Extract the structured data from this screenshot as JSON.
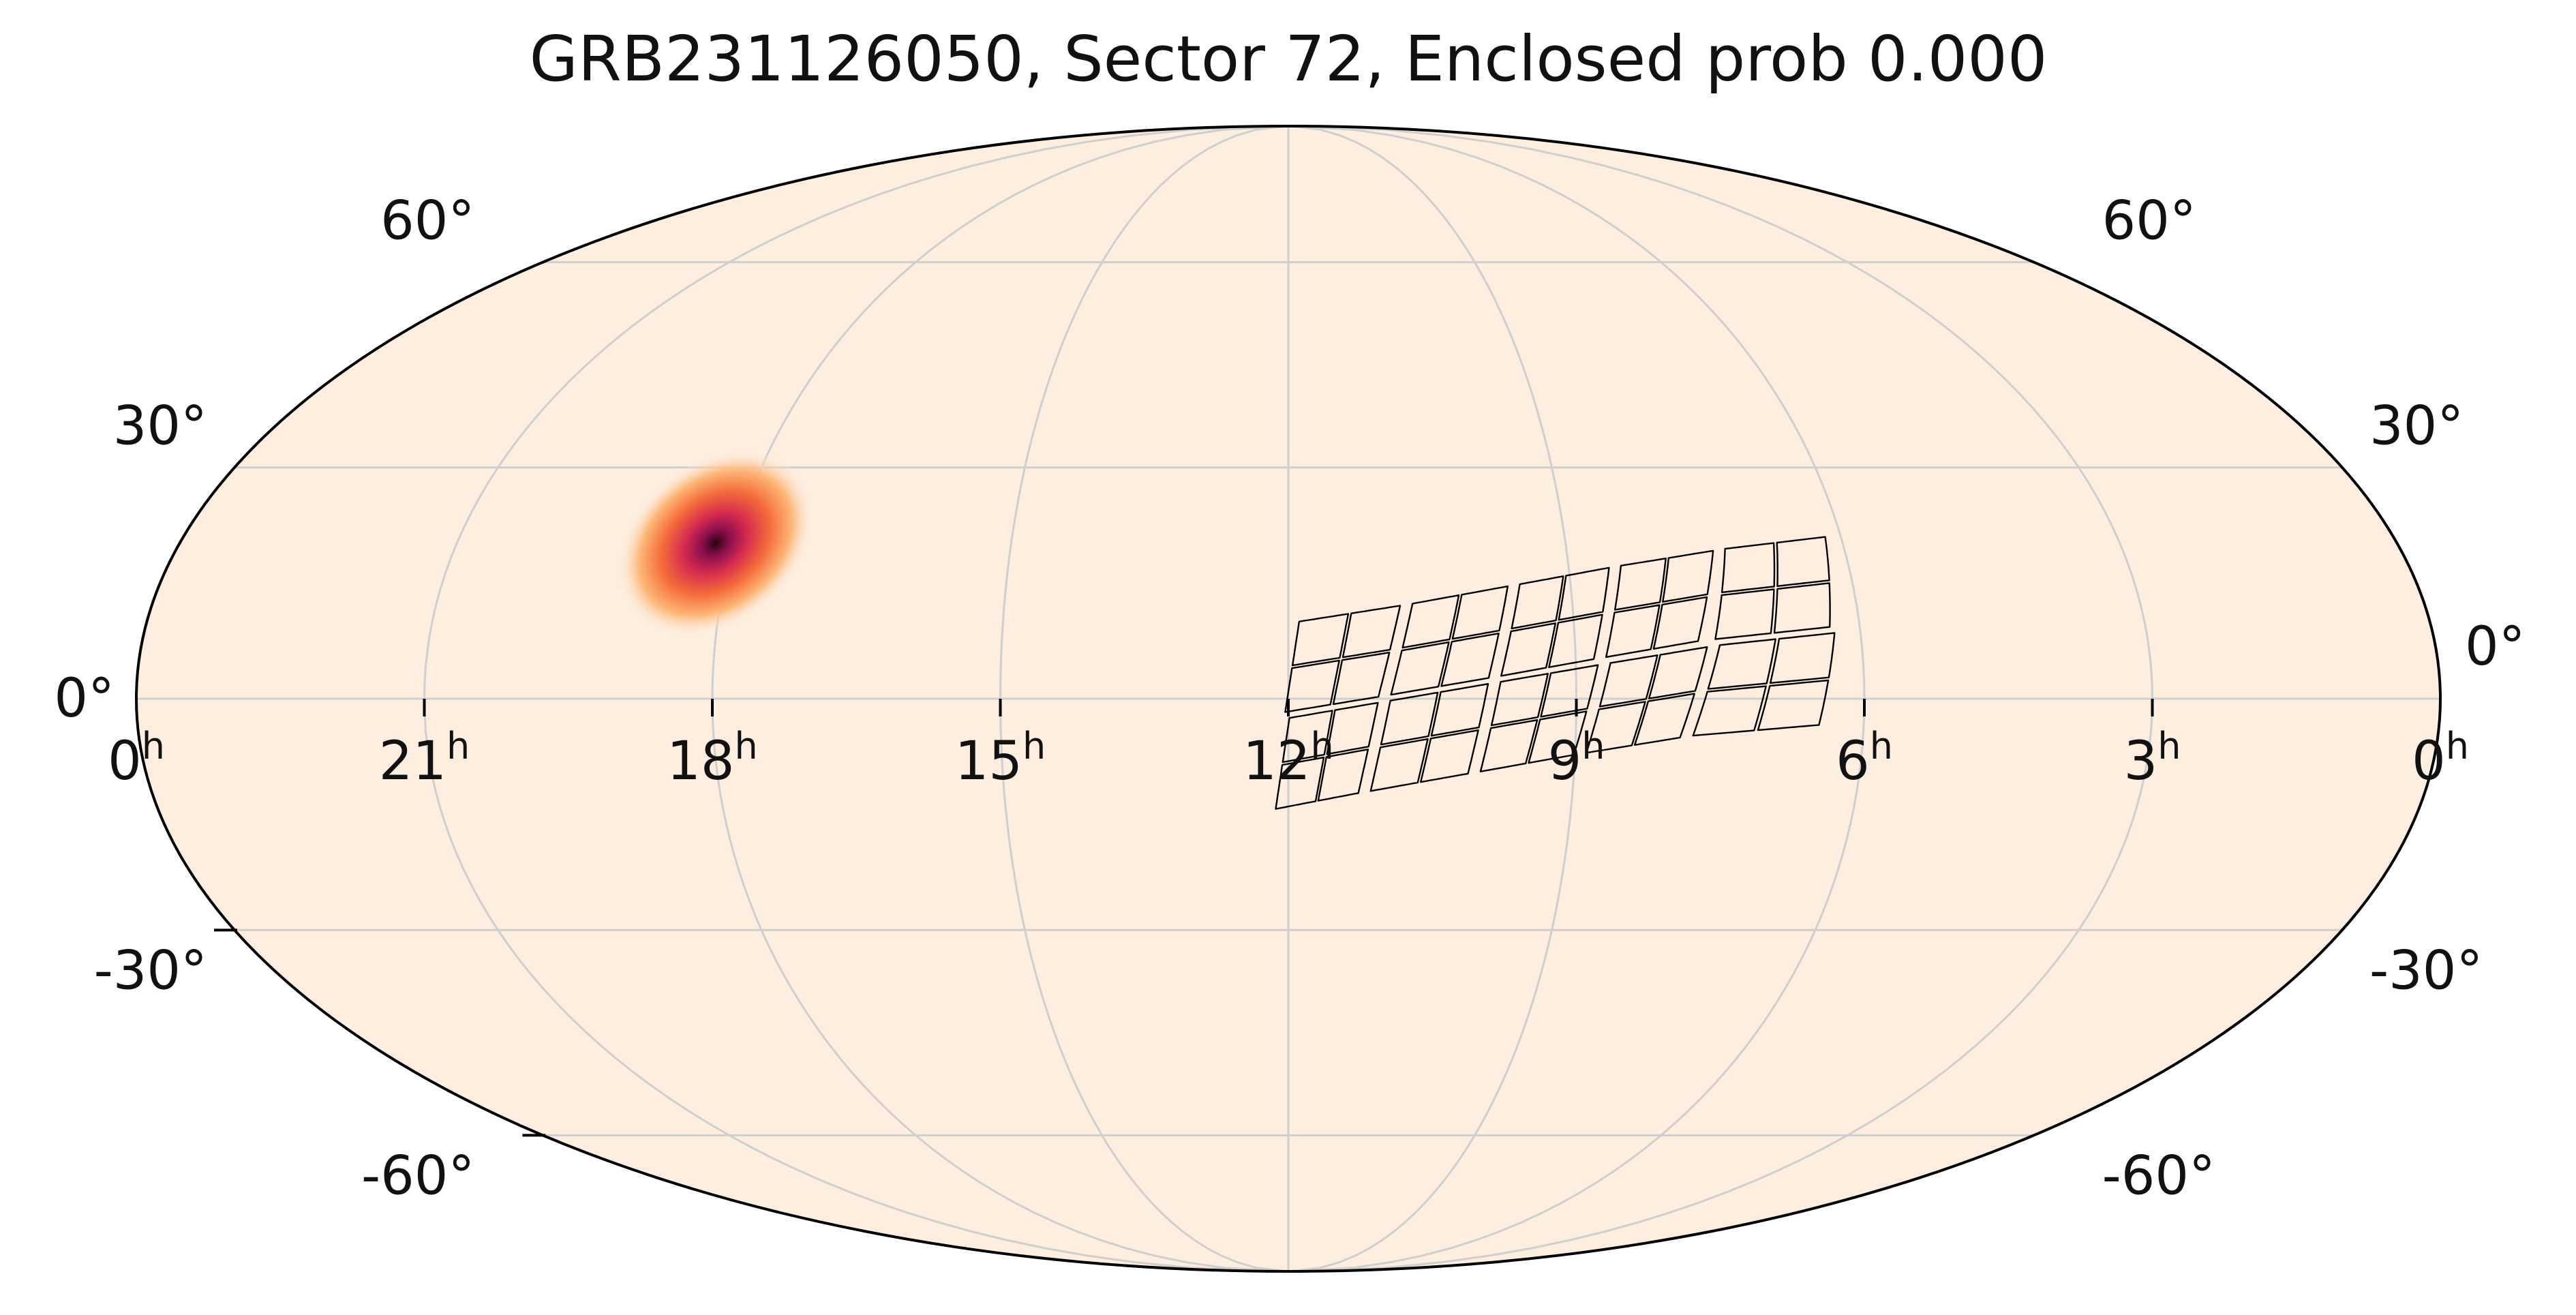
{
  "chart_data": {
    "type": "sky-map",
    "title": "GRB231126050, Sector 72, Enclosed prob 0.000",
    "projection": "mollweide",
    "ra_ticks": [
      {
        "label": "0",
        "sup": "h",
        "ra_h": 24
      },
      {
        "label": "21",
        "sup": "h",
        "ra_h": 21
      },
      {
        "label": "18",
        "sup": "h",
        "ra_h": 18
      },
      {
        "label": "15",
        "sup": "h",
        "ra_h": 15
      },
      {
        "label": "12",
        "sup": "h",
        "ra_h": 12
      },
      {
        "label": "9",
        "sup": "h",
        "ra_h": 9
      },
      {
        "label": "6",
        "sup": "h",
        "ra_h": 6
      },
      {
        "label": "3",
        "sup": "h",
        "ra_h": 3
      },
      {
        "label": "0",
        "sup": "h",
        "ra_h": 0
      }
    ],
    "dec_ticks": [
      {
        "label": "60°",
        "dec": 60
      },
      {
        "label": "30°",
        "dec": 30
      },
      {
        "label": "0°",
        "dec": 0
      },
      {
        "label": "-30°",
        "dec": -30
      },
      {
        "label": "-60°",
        "dec": -60
      }
    ],
    "grid": true,
    "colors": {
      "background": "#fdeee0",
      "grid": "#cfcfcf",
      "outline": "#000000",
      "footprint": "#000000"
    },
    "localization": {
      "ra_h": 18.2,
      "dec": 20,
      "sigma_major_deg": 10,
      "sigma_minor_deg": 5.5,
      "colormap": [
        "#fdeee0",
        "#fdb87a",
        "#f56b3a",
        "#d42a4f",
        "#8a0f4d",
        "#2a0410"
      ]
    },
    "footprint": {
      "upper_band": [
        [
          [
            11.9,
            10.0
          ],
          [
            10.8,
            12.1
          ],
          [
            11.05,
            0.1
          ],
          [
            12.05,
            -1.9
          ]
        ],
        [
          [
            10.7,
            12.3
          ],
          [
            9.65,
            14.6
          ],
          [
            9.9,
            2.5
          ],
          [
            10.95,
            0.3
          ]
        ],
        [
          [
            9.55,
            14.8
          ],
          [
            8.55,
            17.0
          ],
          [
            8.8,
            4.9
          ],
          [
            9.8,
            2.7
          ]
        ],
        [
          [
            8.45,
            17.2
          ],
          [
            7.4,
            19.2
          ],
          [
            7.7,
            7.2
          ],
          [
            8.7,
            5.1
          ]
        ],
        [
          [
            7.3,
            19.4
          ],
          [
            6.15,
            21.0
          ],
          [
            6.3,
            9.0
          ],
          [
            7.55,
            7.4
          ]
        ]
      ],
      "lower_band": [
        [
          [
            12.0,
            -2.3
          ],
          [
            11.05,
            -0.3
          ],
          [
            11.25,
            -12.2
          ],
          [
            12.15,
            -14.3
          ]
        ],
        [
          [
            10.95,
            -0.1
          ],
          [
            9.9,
            2.1
          ],
          [
            10.1,
            -9.7
          ],
          [
            11.15,
            -12.0
          ]
        ],
        [
          [
            9.8,
            2.3
          ],
          [
            8.75,
            4.5
          ],
          [
            9.0,
            -7.3
          ],
          [
            10.0,
            -9.5
          ]
        ],
        [
          [
            8.65,
            4.7
          ],
          [
            7.6,
            6.8
          ],
          [
            7.9,
            -5.1
          ],
          [
            8.9,
            -7.1
          ]
        ],
        [
          [
            7.5,
            7.0
          ],
          [
            6.25,
            8.6
          ],
          [
            6.45,
            -3.5
          ],
          [
            7.8,
            -4.9
          ]
        ]
      ]
    }
  }
}
